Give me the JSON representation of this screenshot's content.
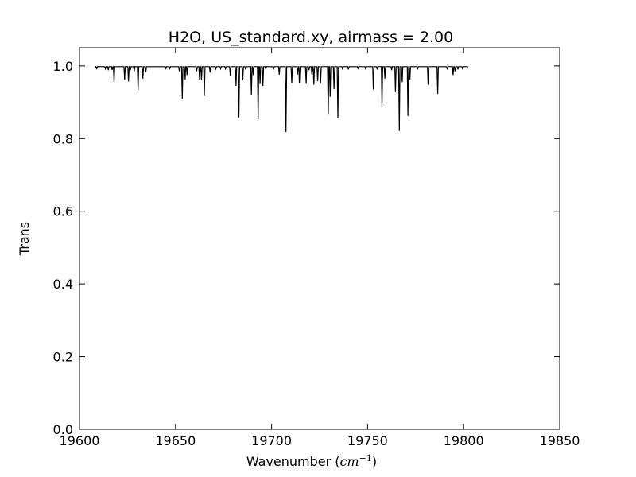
{
  "chart_data": {
    "type": "line",
    "title": "H2O, US_standard.xy, airmass = 2.00",
    "xlabel": "Wavenumber",
    "xlabel_unit_base": "cm",
    "xlabel_unit_exp": "−1",
    "ylabel": "Trans",
    "xlim": [
      19600,
      19850
    ],
    "ylim": [
      0.0,
      1.05
    ],
    "xticks": [
      19600,
      19650,
      19700,
      19750,
      19800,
      19850
    ],
    "xtick_labels": [
      "19600",
      "19650",
      "19700",
      "19750",
      "19800",
      "19850"
    ],
    "yticks": [
      0.0,
      0.2,
      0.4,
      0.6,
      0.8,
      1.0
    ],
    "ytick_labels": [
      "0.0",
      "0.2",
      "0.4",
      "0.6",
      "0.8",
      "1.0"
    ],
    "grid": false,
    "line_color": "#000000",
    "series": [
      {
        "baseline": 0.998,
        "x_start": 19608.5,
        "x_end": 19802,
        "absorption_lines": [
          {
            "x": 19609.0,
            "y": 0.993
          },
          {
            "x": 19613.5,
            "y": 0.992
          },
          {
            "x": 19615.0,
            "y": 0.988
          },
          {
            "x": 19617.0,
            "y": 0.989
          },
          {
            "x": 19618.0,
            "y": 0.955
          },
          {
            "x": 19623.5,
            "y": 0.962
          },
          {
            "x": 19625.5,
            "y": 0.957
          },
          {
            "x": 19626.5,
            "y": 0.988
          },
          {
            "x": 19628.5,
            "y": 0.985
          },
          {
            "x": 19630.5,
            "y": 0.933
          },
          {
            "x": 19633.0,
            "y": 0.965
          },
          {
            "x": 19634.5,
            "y": 0.982
          },
          {
            "x": 19645.0,
            "y": 0.993
          },
          {
            "x": 19647.0,
            "y": 0.993
          },
          {
            "x": 19652.0,
            "y": 0.985
          },
          {
            "x": 19653.5,
            "y": 0.91
          },
          {
            "x": 19655.0,
            "y": 0.962
          },
          {
            "x": 19656.0,
            "y": 0.975
          },
          {
            "x": 19661.0,
            "y": 0.985
          },
          {
            "x": 19662.5,
            "y": 0.96
          },
          {
            "x": 19663.5,
            "y": 0.96
          },
          {
            "x": 19665.0,
            "y": 0.917
          },
          {
            "x": 19668.0,
            "y": 0.982
          },
          {
            "x": 19671.0,
            "y": 0.992
          },
          {
            "x": 19673.5,
            "y": 0.992
          },
          {
            "x": 19676.0,
            "y": 0.992
          },
          {
            "x": 19678.5,
            "y": 0.972
          },
          {
            "x": 19681.5,
            "y": 0.945
          },
          {
            "x": 19683.0,
            "y": 0.858
          },
          {
            "x": 19685.0,
            "y": 0.96
          },
          {
            "x": 19686.5,
            "y": 0.99
          },
          {
            "x": 19689.5,
            "y": 0.919
          },
          {
            "x": 19690.5,
            "y": 0.975
          },
          {
            "x": 19693.0,
            "y": 0.853
          },
          {
            "x": 19694.0,
            "y": 0.95
          },
          {
            "x": 19695.5,
            "y": 0.945
          },
          {
            "x": 19697.0,
            "y": 0.99
          },
          {
            "x": 19701.0,
            "y": 0.99
          },
          {
            "x": 19704.0,
            "y": 0.976
          },
          {
            "x": 19707.5,
            "y": 0.818
          },
          {
            "x": 19710.5,
            "y": 0.952
          },
          {
            "x": 19713.5,
            "y": 0.976
          },
          {
            "x": 19714.5,
            "y": 0.953
          },
          {
            "x": 19718.0,
            "y": 0.951
          },
          {
            "x": 19719.5,
            "y": 0.988
          },
          {
            "x": 19721.0,
            "y": 0.976
          },
          {
            "x": 19722.0,
            "y": 0.948
          },
          {
            "x": 19724.0,
            "y": 0.958
          },
          {
            "x": 19725.5,
            "y": 0.952
          },
          {
            "x": 19729.5,
            "y": 0.866
          },
          {
            "x": 19730.5,
            "y": 0.915
          },
          {
            "x": 19732.5,
            "y": 0.936
          },
          {
            "x": 19734.5,
            "y": 0.856
          },
          {
            "x": 19737.0,
            "y": 0.99
          },
          {
            "x": 19740.0,
            "y": 0.99
          },
          {
            "x": 19745.0,
            "y": 0.993
          },
          {
            "x": 19749.0,
            "y": 0.99
          },
          {
            "x": 19753.0,
            "y": 0.935
          },
          {
            "x": 19755.0,
            "y": 0.99
          },
          {
            "x": 19757.5,
            "y": 0.886
          },
          {
            "x": 19759.0,
            "y": 0.965
          },
          {
            "x": 19762.5,
            "y": 0.988
          },
          {
            "x": 19764.5,
            "y": 0.928
          },
          {
            "x": 19766.5,
            "y": 0.821
          },
          {
            "x": 19768.0,
            "y": 0.955
          },
          {
            "x": 19771.0,
            "y": 0.862
          },
          {
            "x": 19772.0,
            "y": 0.962
          },
          {
            "x": 19776.0,
            "y": 0.99
          },
          {
            "x": 19781.5,
            "y": 0.948
          },
          {
            "x": 19786.5,
            "y": 0.923
          },
          {
            "x": 19791.5,
            "y": 0.99
          },
          {
            "x": 19794.5,
            "y": 0.975
          },
          {
            "x": 19795.5,
            "y": 0.985
          },
          {
            "x": 19797.0,
            "y": 0.99
          },
          {
            "x": 19799.5,
            "y": 0.99
          }
        ]
      }
    ]
  }
}
